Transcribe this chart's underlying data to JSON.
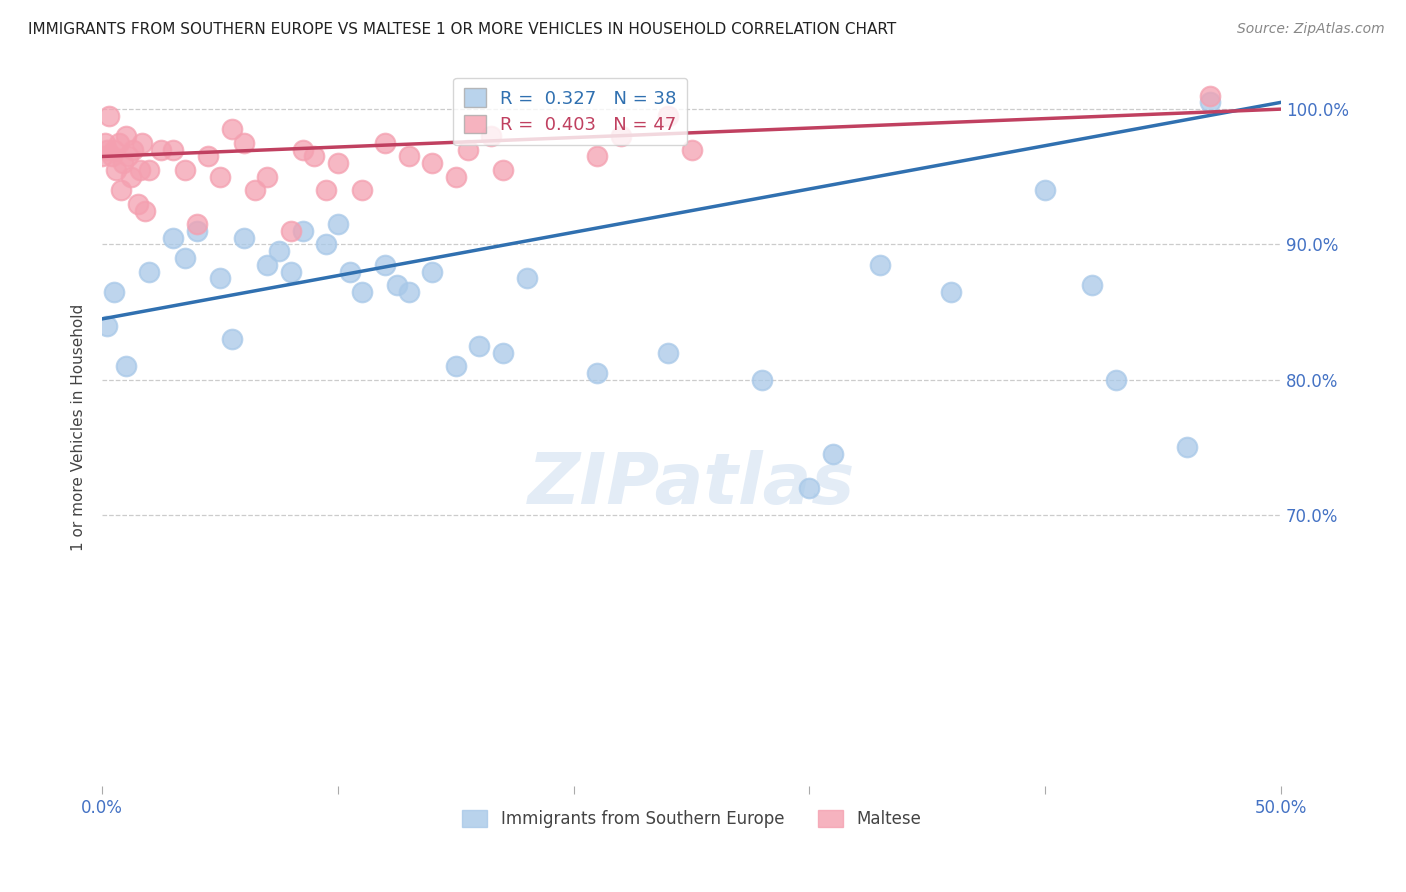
{
  "title": "IMMIGRANTS FROM SOUTHERN EUROPE VS MALTESE 1 OR MORE VEHICLES IN HOUSEHOLD CORRELATION CHART",
  "source": "Source: ZipAtlas.com",
  "ylabel": "1 or more Vehicles in Household",
  "legend1_label": "Immigrants from Southern Europe",
  "legend2_label": "Maltese",
  "r_blue": 0.327,
  "n_blue": 38,
  "r_pink": 0.403,
  "n_pink": 47,
  "blue_color": "#a8c8e8",
  "pink_color": "#f4a0b0",
  "trendline_blue": "#3070b0",
  "trendline_pink": "#c04060",
  "blue_points_x": [
    0.2,
    0.5,
    1.0,
    2.0,
    3.0,
    3.5,
    4.0,
    5.0,
    5.5,
    6.0,
    7.0,
    7.5,
    8.0,
    8.5,
    9.5,
    10.0,
    10.5,
    11.0,
    12.0,
    12.5,
    13.0,
    14.0,
    15.0,
    16.0,
    17.0,
    18.0,
    21.0,
    24.0,
    28.0,
    30.0,
    31.0,
    33.0,
    36.0,
    40.0,
    42.0,
    43.0,
    46.0,
    47.0
  ],
  "blue_points_y": [
    84.0,
    86.5,
    81.0,
    88.0,
    90.5,
    89.0,
    91.0,
    87.5,
    83.0,
    90.5,
    88.5,
    89.5,
    88.0,
    91.0,
    90.0,
    91.5,
    88.0,
    86.5,
    88.5,
    87.0,
    86.5,
    88.0,
    81.0,
    82.5,
    82.0,
    87.5,
    80.5,
    82.0,
    80.0,
    72.0,
    74.5,
    88.5,
    86.5,
    94.0,
    87.0,
    80.0,
    75.0,
    100.5
  ],
  "pink_points_x": [
    0.0,
    0.1,
    0.2,
    0.3,
    0.4,
    0.5,
    0.6,
    0.7,
    0.8,
    0.9,
    1.0,
    1.1,
    1.2,
    1.3,
    1.5,
    1.6,
    1.7,
    1.8,
    2.0,
    2.5,
    3.0,
    3.5,
    4.0,
    4.5,
    5.0,
    5.5,
    6.0,
    6.5,
    7.0,
    8.0,
    8.5,
    9.0,
    9.5,
    10.0,
    11.0,
    12.0,
    13.0,
    14.0,
    15.0,
    15.5,
    16.5,
    17.0,
    21.0,
    22.0,
    24.0,
    25.0,
    47.0
  ],
  "pink_points_y": [
    96.5,
    97.5,
    97.0,
    99.5,
    96.5,
    97.0,
    95.5,
    97.5,
    94.0,
    96.0,
    98.0,
    96.5,
    95.0,
    97.0,
    93.0,
    95.5,
    97.5,
    92.5,
    95.5,
    97.0,
    97.0,
    95.5,
    91.5,
    96.5,
    95.0,
    98.5,
    97.5,
    94.0,
    95.0,
    91.0,
    97.0,
    96.5,
    94.0,
    96.0,
    94.0,
    97.5,
    96.5,
    96.0,
    95.0,
    97.0,
    98.0,
    95.5,
    96.5,
    98.0,
    99.5,
    97.0,
    101.0
  ],
  "blue_trendline_x0": 0.0,
  "blue_trendline_y0": 84.5,
  "blue_trendline_x1": 50.0,
  "blue_trendline_y1": 100.5,
  "pink_trendline_x0": 0.0,
  "pink_trendline_y0": 96.5,
  "pink_trendline_x1": 50.0,
  "pink_trendline_y1": 100.0,
  "xmin": 0.0,
  "xmax": 50.0,
  "ymin": 50.0,
  "ymax": 103.0,
  "ytick_vals": [
    100.0,
    90.0,
    80.0,
    70.0
  ],
  "ytick_labels": [
    "100.0%",
    "90.0%",
    "80.0%",
    "70.0%"
  ],
  "background_color": "#ffffff",
  "grid_color": "#cccccc"
}
